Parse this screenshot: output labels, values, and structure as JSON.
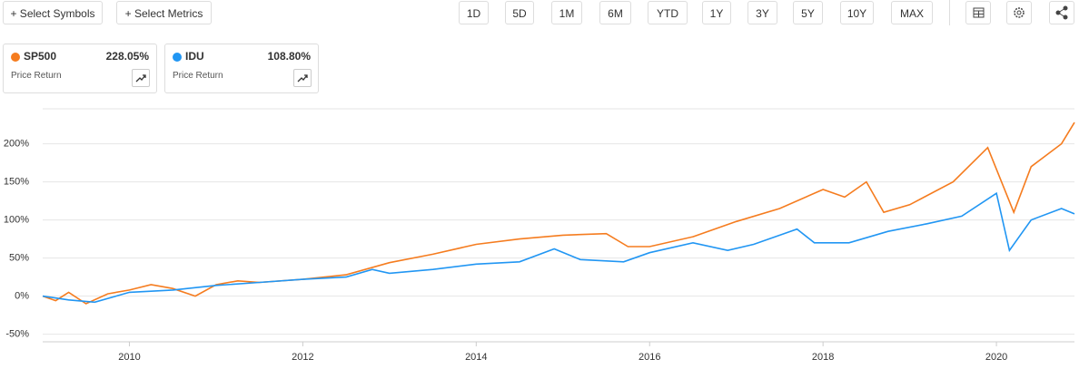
{
  "toolbar": {
    "select_symbols": "+ Select Symbols",
    "select_metrics": "+ Select Metrics",
    "ranges": [
      "1D",
      "5D",
      "1M",
      "6M",
      "YTD",
      "1Y",
      "3Y",
      "5Y",
      "10Y",
      "MAX"
    ]
  },
  "cards": [
    {
      "return": "228.05%",
      "metric": "Price Return"
    },
    {
      "return": "108.80%",
      "metric": "Price Return"
    }
  ],
  "chart_data": {
    "type": "line",
    "xlim": [
      2009,
      2020.9
    ],
    "xticks": [
      2010,
      2012,
      2014,
      2016,
      2018,
      2020
    ],
    "ylim": [
      -60,
      246
    ],
    "yticks": [
      {
        "value": -50,
        "label": "-50%"
      },
      {
        "value": 0,
        "label": "0%"
      },
      {
        "value": 50,
        "label": "50%"
      },
      {
        "value": 100,
        "label": "100%"
      },
      {
        "value": 150,
        "label": "150%"
      },
      {
        "value": 200,
        "label": "200%"
      }
    ],
    "grid": true,
    "series": [
      {
        "name": "SP500",
        "color": "#f57c1f",
        "x": [
          2009,
          2009.15,
          2009.3,
          2009.5,
          2009.75,
          2010,
          2010.25,
          2010.5,
          2010.76,
          2011,
          2011.25,
          2011.5,
          2012,
          2012.5,
          2013,
          2013.5,
          2014,
          2014.5,
          2015,
          2015.5,
          2015.75,
          2016,
          2016.5,
          2017,
          2017.5,
          2018,
          2018.25,
          2018.5,
          2018.7,
          2019,
          2019.5,
          2019.9,
          2020.2,
          2020.4,
          2020.75,
          2020.9
        ],
        "values": [
          0,
          -6,
          5,
          -10,
          3,
          8,
          15,
          10,
          0,
          15,
          20,
          18,
          22,
          28,
          44,
          55,
          68,
          75,
          80,
          82,
          65,
          65,
          78,
          98,
          115,
          140,
          130,
          150,
          110,
          120,
          150,
          195,
          110,
          170,
          200,
          228
        ]
      },
      {
        "name": "IDU",
        "color": "#2196f3",
        "x": [
          2009,
          2009.3,
          2009.6,
          2010,
          2010.5,
          2011,
          2011.5,
          2012,
          2012.5,
          2012.8,
          2013,
          2013.5,
          2014,
          2014.5,
          2014.9,
          2015.2,
          2015.7,
          2016,
          2016.5,
          2016.9,
          2017.2,
          2017.7,
          2017.9,
          2018.3,
          2018.75,
          2019.2,
          2019.6,
          2020,
          2020.15,
          2020.4,
          2020.75,
          2020.9
        ],
        "values": [
          0,
          -5,
          -8,
          5,
          8,
          14,
          18,
          22,
          25,
          35,
          30,
          35,
          42,
          45,
          62,
          48,
          45,
          57,
          70,
          60,
          68,
          88,
          70,
          70,
          85,
          95,
          105,
          135,
          60,
          100,
          115,
          108
        ]
      }
    ]
  }
}
